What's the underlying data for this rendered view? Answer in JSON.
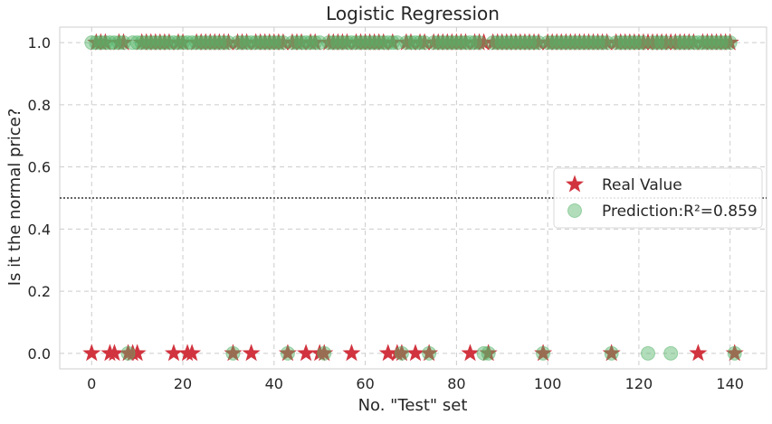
{
  "chart_data": {
    "type": "scatter",
    "title": "Logistic Regression",
    "xlabel": "No. \"Test\" set",
    "ylabel": "Is it the normal price?",
    "xlim": [
      -7,
      148
    ],
    "ylim": [
      -0.05,
      1.05
    ],
    "xticks": [
      0,
      20,
      40,
      60,
      80,
      100,
      120,
      140
    ],
    "yticks": [
      0.0,
      0.2,
      0.4,
      0.6,
      0.8,
      1.0
    ],
    "xtick_labels": [
      "0",
      "20",
      "40",
      "60",
      "80",
      "100",
      "120",
      "140"
    ],
    "ytick_labels": [
      "0.0",
      "0.2",
      "0.4",
      "0.6",
      "0.8",
      "1.0"
    ],
    "threshold": 0.5,
    "grid": true,
    "legend_position": "right",
    "series": [
      {
        "name": "Real Value",
        "marker": "star",
        "color": "#d1343f",
        "zeros_x": [
          0,
          4,
          5,
          8,
          9,
          10,
          18,
          21,
          22,
          31,
          35,
          43,
          47,
          50,
          51,
          57,
          65,
          67,
          68,
          71,
          74,
          83,
          87,
          99,
          114,
          133,
          141
        ],
        "y": "1.0 for every other index from 0 to 141"
      },
      {
        "name": "Prediction:R²=0.859",
        "marker": "circle",
        "color": "#55b468",
        "zeros_x": [
          8,
          31,
          43,
          51,
          68,
          74,
          86,
          87,
          99,
          114,
          122,
          127,
          141
        ],
        "y": "1.0 for every other index from 0 to 141"
      }
    ],
    "n_points": 142
  }
}
